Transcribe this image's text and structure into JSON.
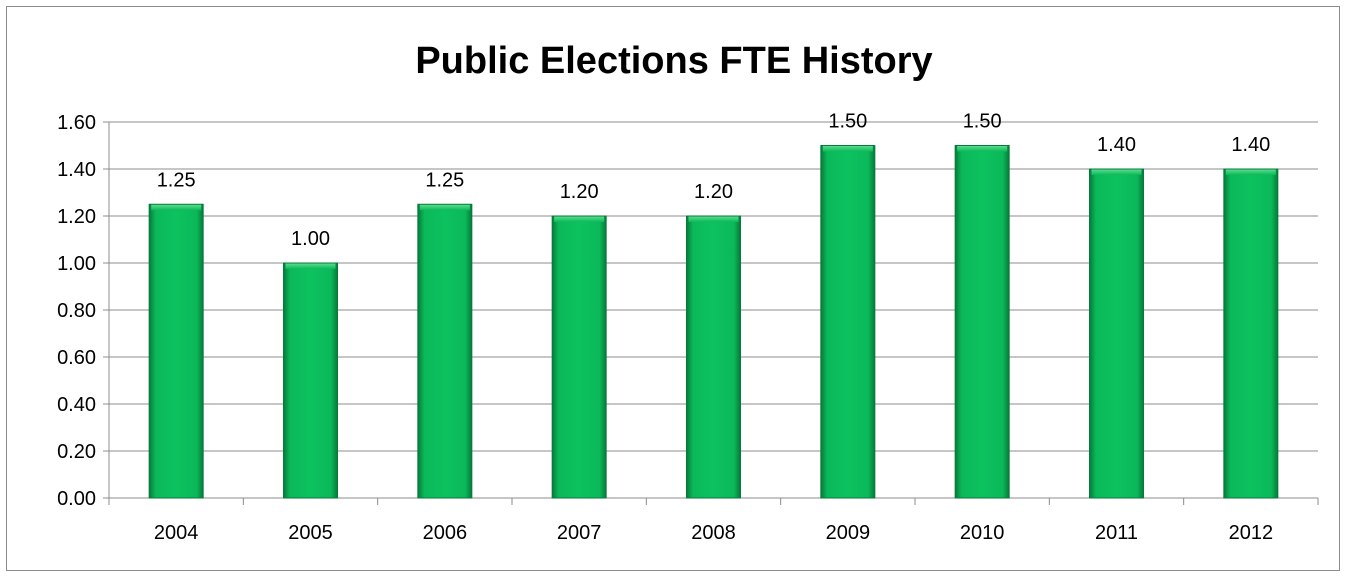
{
  "chart_data": {
    "type": "bar",
    "title": "Public Elections FTE History",
    "categories": [
      "2004",
      "2005",
      "2006",
      "2007",
      "2008",
      "2009",
      "2010",
      "2011",
      "2012"
    ],
    "values": [
      1.25,
      1.0,
      1.25,
      1.2,
      1.2,
      1.5,
      1.5,
      1.4,
      1.4
    ],
    "data_labels": [
      "1.25",
      "1.00",
      "1.25",
      "1.20",
      "1.20",
      "1.50",
      "1.50",
      "1.40",
      "1.40"
    ],
    "ylim": [
      0,
      1.6
    ],
    "yticks": [
      0,
      0.2,
      0.4,
      0.6,
      0.8,
      1.0,
      1.2,
      1.4,
      1.6
    ],
    "ytick_labels": [
      "0.00",
      "0.20",
      "0.40",
      "0.60",
      "0.80",
      "1.00",
      "1.20",
      "1.40",
      "1.60"
    ],
    "grid": true,
    "legend": "none",
    "colors": {
      "bar": "#0bb85a",
      "bar_highlight": "#5fe08f",
      "bar_shadow": "#067a3a",
      "grid": "#8c8c8c",
      "axis": "#8c8c8c",
      "text": "#000000"
    }
  }
}
